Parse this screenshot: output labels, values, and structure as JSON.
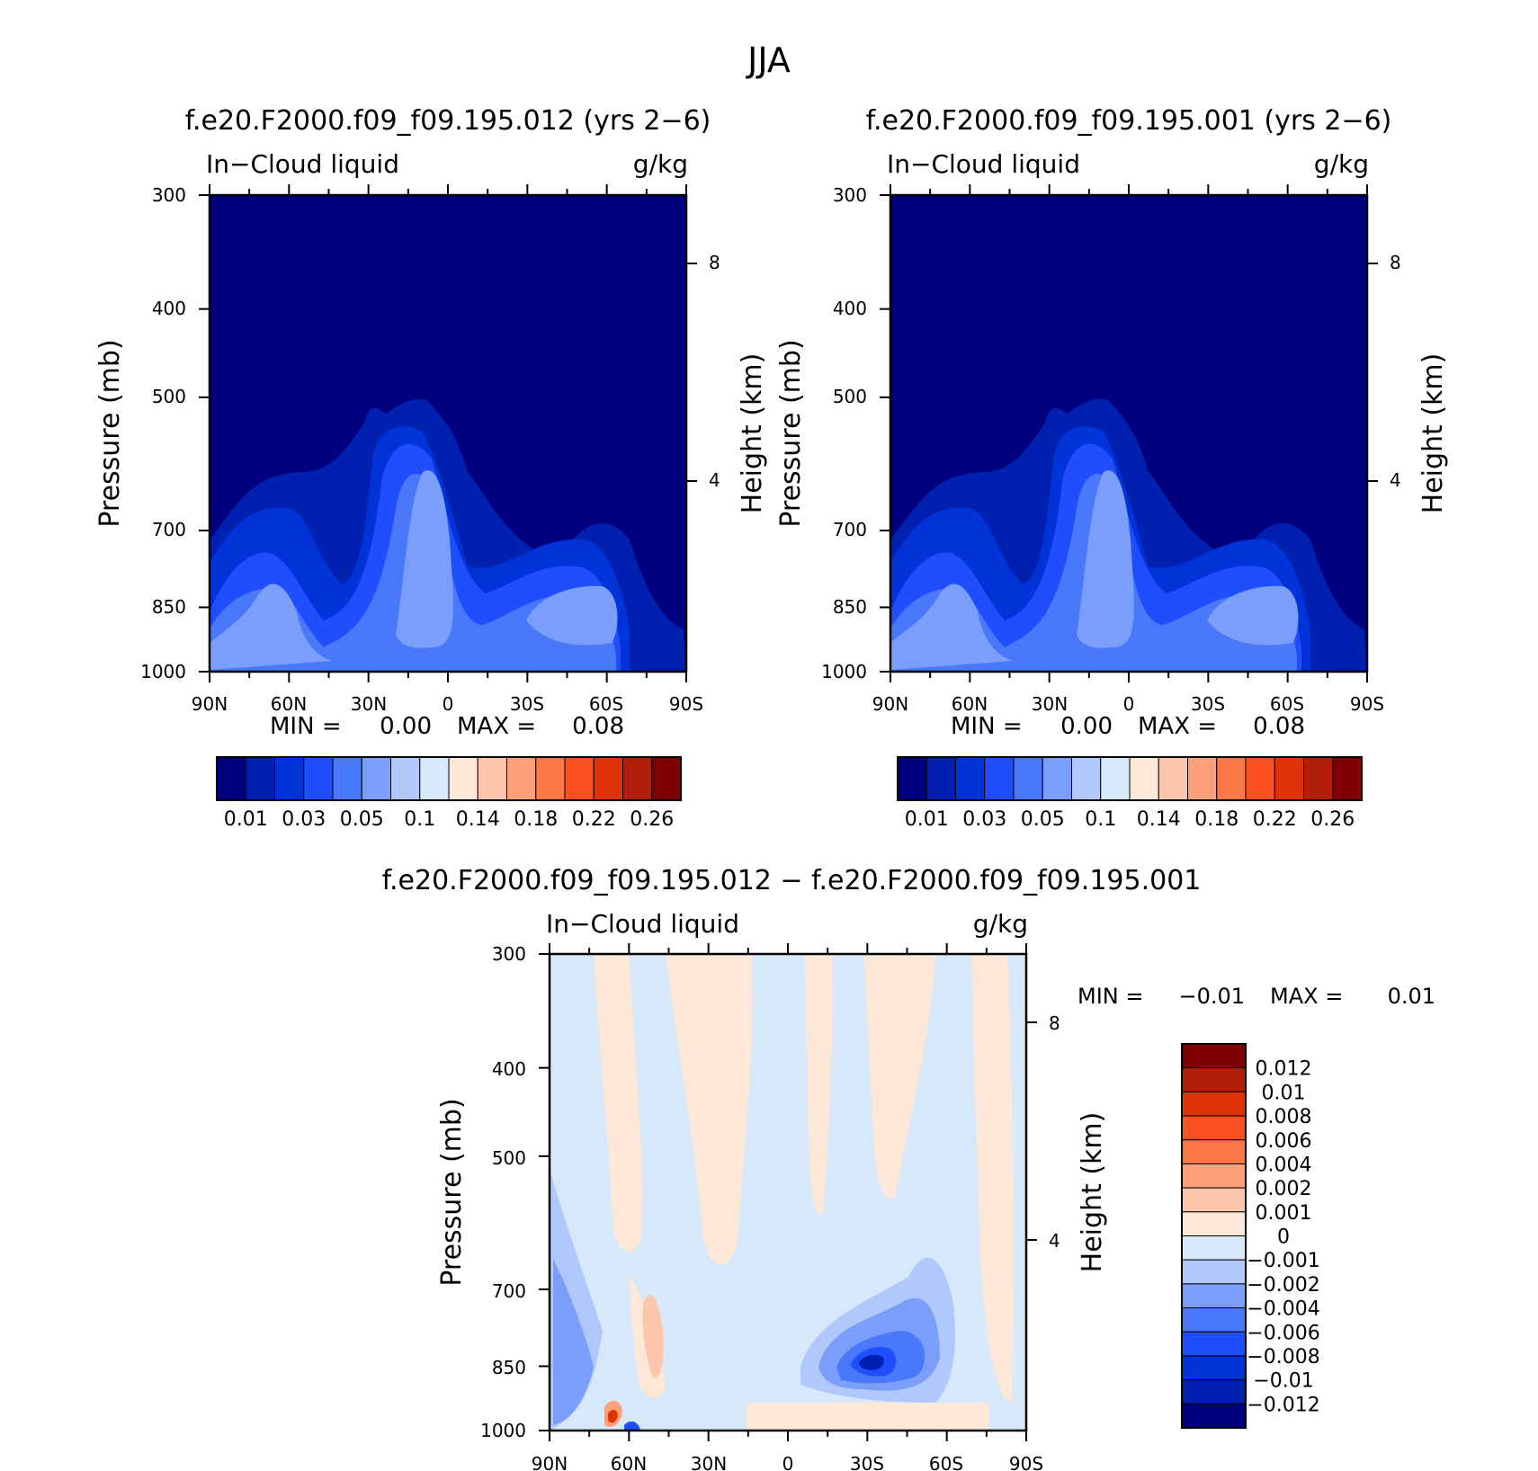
{
  "page": {
    "title": "JJA"
  },
  "chart_data": [
    {
      "type": "heatmap",
      "title": "f.e20.F2000.f09_f09.195.012 (yrs 2−6)",
      "left_label": "In−Cloud liquid",
      "right_label": "g/kg",
      "ylabel": "Pressure (mb)",
      "y2label": "Height (km)",
      "x_ticks": [
        "90N",
        "60N",
        "30N",
        "0",
        "30S",
        "60S",
        "90S"
      ],
      "y_ticks": [
        "300",
        "400",
        "500",
        "700",
        "850",
        "1000"
      ],
      "y2_ticks": [
        "8",
        "4"
      ],
      "xlim": [
        90,
        -90
      ],
      "ylim": [
        1000,
        300
      ],
      "log_y": true,
      "min_label": "MIN =",
      "min_value": "0.00",
      "max_label": "MAX =",
      "max_value": "0.08",
      "levels": [
        "0.01",
        "0.03",
        "0.05",
        "0.1",
        "0.14",
        "0.18",
        "0.22",
        "0.26"
      ],
      "colors": [
        "#00007f",
        "#0020b0",
        "#0034d8",
        "#1f4efd",
        "#4a78fb",
        "#7b9efa",
        "#b0c8fb",
        "#d8e8fb",
        "#fde8d8",
        "#fcc6ac",
        "#fca07a",
        "#fc7846",
        "#fb5020",
        "#e03408",
        "#b21e08",
        "#7f0000"
      ]
    },
    {
      "type": "heatmap",
      "title": "f.e20.F2000.f09_f09.195.001 (yrs 2−6)",
      "left_label": "In−Cloud liquid",
      "right_label": "g/kg",
      "ylabel": "Pressure (mb)",
      "y2label": "Height (km)",
      "x_ticks": [
        "90N",
        "60N",
        "30N",
        "0",
        "30S",
        "60S",
        "90S"
      ],
      "y_ticks": [
        "300",
        "400",
        "500",
        "700",
        "850",
        "1000"
      ],
      "y2_ticks": [
        "8",
        "4"
      ],
      "xlim": [
        90,
        -90
      ],
      "ylim": [
        1000,
        300
      ],
      "log_y": true,
      "min_label": "MIN =",
      "min_value": "0.00",
      "max_label": "MAX =",
      "max_value": "0.08",
      "levels": [
        "0.01",
        "0.03",
        "0.05",
        "0.1",
        "0.14",
        "0.18",
        "0.22",
        "0.26"
      ],
      "colors": [
        "#00007f",
        "#0020b0",
        "#0034d8",
        "#1f4efd",
        "#4a78fb",
        "#7b9efa",
        "#b0c8fb",
        "#d8e8fb",
        "#fde8d8",
        "#fcc6ac",
        "#fca07a",
        "#fc7846",
        "#fb5020",
        "#e03408",
        "#b21e08",
        "#7f0000"
      ]
    },
    {
      "type": "heatmap",
      "title": "f.e20.F2000.f09_f09.195.012 − f.e20.F2000.f09_f09.195.001",
      "left_label": "In−Cloud liquid",
      "right_label": "g/kg",
      "ylabel": "Pressure (mb)",
      "y2label": "Height (km)",
      "x_ticks": [
        "90N",
        "60N",
        "30N",
        "0",
        "30S",
        "60S",
        "90S"
      ],
      "y_ticks": [
        "300",
        "400",
        "500",
        "700",
        "850",
        "1000"
      ],
      "y2_ticks": [
        "8",
        "4"
      ],
      "xlim": [
        90,
        -90
      ],
      "ylim": [
        1000,
        300
      ],
      "log_y": true,
      "min_label": "MIN =",
      "min_value": "−0.01",
      "max_label": "MAX =",
      "max_value": "0.01",
      "levels": [
        "0.012",
        "0.01",
        "0.008",
        "0.006",
        "0.004",
        "0.002",
        "0.001",
        "0",
        "−0.001",
        "−0.002",
        "−0.004",
        "−0.006",
        "−0.008",
        "−0.01",
        "−0.012"
      ],
      "colors": [
        "#7f0000",
        "#b21e08",
        "#e03408",
        "#fb5020",
        "#fc7846",
        "#fca07a",
        "#fcc6ac",
        "#fde8d8",
        "#d8e8fb",
        "#b0c8fb",
        "#7b9efa",
        "#4a78fb",
        "#1f4efd",
        "#0034d8",
        "#0020b0",
        "#00007f"
      ]
    }
  ]
}
